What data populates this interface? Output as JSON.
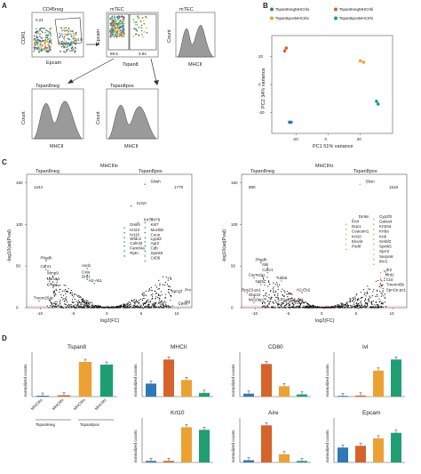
{
  "panels": {
    "A": "A",
    "B": "B",
    "C": "C",
    "D": "D"
  },
  "panel_a": {
    "plot1": {
      "title": "CD45neg",
      "xlabel": "Epcam",
      "ylabel": "CDR1",
      "gate_top": "0.21",
      "gate_right": "34.9"
    },
    "plot2": {
      "title": "mTEC",
      "xlabel": "Tspan8",
      "ylabel": "Epcam",
      "gate_left": "89.5",
      "gate_right": "3.94"
    },
    "plot3": {
      "title": "mTEC",
      "xlabel": "MHCII",
      "ylabel": "Count",
      "left_val": "55.6",
      "right_val": "44.4"
    },
    "plot4": {
      "title": "Tspan8neg",
      "xlabel": "MHCII",
      "ylabel": "Count",
      "left_val": "56.3",
      "right_val": "44.7"
    },
    "plot5": {
      "title": "Tspan8pos",
      "xlabel": "MHCII",
      "ylabel": "Count",
      "left_val": "56.1",
      "right_val": "43.7"
    }
  },
  "colors": {
    "blue": "#2e78b7",
    "red": "#d5632a",
    "orange": "#eba232",
    "green": "#1f9e74",
    "teal": "#2aa38a"
  },
  "chart_data": [
    {
      "type": "scatter",
      "title": "",
      "xlabel": "PC1 51% variance",
      "ylabel": "PC2 34% variance",
      "legend": [
        "Tspan8negMHCIIlo",
        "Tspan8negMHCIIhi",
        "Tspan8posMHCIIlo",
        "Tspan8posMHCIIhi"
      ],
      "xticks": [
        "-20",
        "0",
        "20"
      ],
      "yticks": [
        "20",
        "0",
        "-20"
      ],
      "series": [
        {
          "name": "Tspan8negMHCIIlo",
          "color": "#2e78b7",
          "x": [
            -24,
            -23
          ],
          "y": [
            -27,
            -27
          ]
        },
        {
          "name": "Tspan8negMHCIIhi",
          "color": "#d5632a",
          "x": [
            -27,
            -26
          ],
          "y": [
            24,
            26
          ]
        },
        {
          "name": "Tspan8posMHCIIlo",
          "color": "#eba232",
          "x": [
            20,
            22
          ],
          "y": [
            17,
            16
          ]
        },
        {
          "name": "Tspan8posMHCIIhi",
          "color": "#1f9e74",
          "x": [
            30,
            31
          ],
          "y": [
            -12,
            -14
          ]
        }
      ]
    },
    {
      "type": "scatter",
      "title": "MHCIIlo",
      "left_group": "Tspan8neg",
      "right_group": "Tspan8pos",
      "xlabel": "log2(FC)",
      "ylabel": "-log10(adjPval)",
      "xticks": [
        "-10",
        "-5",
        "0",
        "5",
        "10"
      ],
      "yticks": [
        "0",
        "50",
        "100",
        "150"
      ],
      "count_left": "1244",
      "count_right": "1779",
      "labels_right": [
        {
          "text": "S8wh",
          "x": 6,
          "y": 150
        },
        {
          "text": "Krt10",
          "x": 4,
          "y": 124
        },
        {
          "text": "Krt77",
          "x": 5,
          "y": 104
        },
        {
          "text": "Krt79",
          "x": 6,
          "y": 104
        },
        {
          "text": "Dmkn",
          "x": 3,
          "y": 98
        },
        {
          "text": "Ki67",
          "x": 6,
          "y": 98
        },
        {
          "text": "Krt23",
          "x": 3,
          "y": 92
        },
        {
          "text": "Mucl5b",
          "x": 6,
          "y": 92
        },
        {
          "text": "Krt10",
          "x": 3,
          "y": 86
        },
        {
          "text": "Coun",
          "x": 6,
          "y": 86
        },
        {
          "text": "Wfdc2",
          "x": 3,
          "y": 81
        },
        {
          "text": "Lypd3",
          "x": 6,
          "y": 81
        },
        {
          "text": "Calml3",
          "x": 3,
          "y": 76
        },
        {
          "text": "Agr2",
          "x": 6,
          "y": 76
        },
        {
          "text": "Fam84a",
          "x": 3,
          "y": 70
        },
        {
          "text": "Cdb",
          "x": 6,
          "y": 70
        },
        {
          "text": "Rptn",
          "x": 3,
          "y": 64
        },
        {
          "text": "Spink5",
          "x": 6,
          "y": 64
        },
        {
          "text": "Cd36",
          "x": 6,
          "y": 58
        },
        {
          "text": "Sprr2f",
          "x": 9,
          "y": 18
        },
        {
          "text": "Pm",
          "x": 11,
          "y": 20
        },
        {
          "text": "Aqp7",
          "x": 7,
          "y": 4
        },
        {
          "text": "Cpa6",
          "x": 10,
          "y": 4
        },
        {
          "text": "Hg",
          "x": 11,
          "y": 6
        }
      ],
      "labels_left": [
        {
          "text": "Phgdh",
          "x": -10,
          "y": 58
        },
        {
          "text": "Cdhr1",
          "x": -10,
          "y": 48
        },
        {
          "text": "Mmp9",
          "x": -9,
          "y": 40
        },
        {
          "text": "Lama4",
          "x": -9,
          "y": 33
        },
        {
          "text": "Chga",
          "x": -9,
          "y": 26
        },
        {
          "text": "Asd1",
          "x": -4,
          "y": 49
        },
        {
          "text": "Cxla",
          "x": -4,
          "y": 41
        },
        {
          "text": "Drd1",
          "x": -4,
          "y": 36
        },
        {
          "text": "H2-Ab1",
          "x": -3,
          "y": 31
        },
        {
          "text": "Tmem254c",
          "x": -11,
          "y": 10
        }
      ]
    },
    {
      "type": "scatter",
      "title": "MHCIIhi",
      "left_group": "Tspan8neg",
      "right_group": "Tspan8pos",
      "xlabel": "log2(FC)",
      "ylabel": "-log10(adjPval)",
      "xticks": [
        "-10",
        "-5",
        "0",
        "5",
        "10"
      ],
      "yticks": [
        "0",
        "50",
        "100",
        "150"
      ],
      "count_left": "880",
      "count_right": "1519",
      "labels_right": [
        {
          "text": "Sbsn",
          "x": 6,
          "y": 150
        },
        {
          "text": "Dmkn",
          "x": 5,
          "y": 108
        },
        {
          "text": "Cyp2f2",
          "x": 8,
          "y": 108
        },
        {
          "text": "Krt4",
          "x": 4,
          "y": 102
        },
        {
          "text": "Gaixa4",
          "x": 8,
          "y": 102
        },
        {
          "text": "Dqx1",
          "x": 4,
          "y": 96
        },
        {
          "text": "Krt34a",
          "x": 8,
          "y": 96
        },
        {
          "text": "Ceacam1",
          "x": 4,
          "y": 90
        },
        {
          "text": "Krt6a",
          "x": 8,
          "y": 90
        },
        {
          "text": "Krt10",
          "x": 4,
          "y": 84
        },
        {
          "text": "Krt6",
          "x": 8,
          "y": 84
        },
        {
          "text": "Elovl4",
          "x": 4,
          "y": 78
        },
        {
          "text": "Srebf2",
          "x": 8,
          "y": 78
        },
        {
          "text": "Psdrl",
          "x": 4,
          "y": 72
        },
        {
          "text": "Spink5",
          "x": 8,
          "y": 72
        },
        {
          "text": "Sprr3",
          "x": 8,
          "y": 66
        },
        {
          "text": "Serpin8",
          "x": 8,
          "y": 60
        },
        {
          "text": "Ifrn3",
          "x": 8,
          "y": 54
        },
        {
          "text": "Ifr2",
          "x": 9,
          "y": 44
        },
        {
          "text": "Ifrd1",
          "x": 9,
          "y": 38
        },
        {
          "text": "Ctxl",
          "x": 9,
          "y": 32
        },
        {
          "text": "Tmem45b",
          "x": 9,
          "y": 26
        },
        {
          "text": "Sprr2e-ps1",
          "x": 9,
          "y": 20
        }
      ],
      "labels_left": [
        {
          "text": "Phgdh",
          "x": -10,
          "y": 56
        },
        {
          "text": "Ibkl",
          "x": -9,
          "y": 50
        },
        {
          "text": "Cdhr1",
          "x": -9,
          "y": 44
        },
        {
          "text": "Cacna1g",
          "x": -11,
          "y": 38
        },
        {
          "text": "Tubb5",
          "x": -7,
          "y": 34
        },
        {
          "text": "Npt5",
          "x": -10,
          "y": 30
        },
        {
          "text": "Rps23-ps1",
          "x": -12,
          "y": 20
        },
        {
          "text": "Gbp10",
          "x": -11,
          "y": 14
        },
        {
          "text": "Ms16bp",
          "x": -11,
          "y": 8
        },
        {
          "text": "Defb22-ps1",
          "x": -6,
          "y": 8
        },
        {
          "text": "H2-Eb2",
          "x": -4,
          "y": 20
        }
      ]
    },
    {
      "type": "bar",
      "title": "Tspan8",
      "ylabel": "normalized counts",
      "categories": [
        "MHCIIlo",
        "MHCIIhi",
        "MHCIIlo",
        "MHCIIhi"
      ],
      "group_labels": [
        "Tspan8neg",
        "Tspan8pos"
      ],
      "values": [
        2,
        3,
        78,
        72
      ],
      "ylim": [
        0,
        100
      ]
    },
    {
      "type": "bar",
      "title": "MHCII",
      "ylabel": "normalized counts",
      "values": [
        35,
        100,
        45,
        10
      ],
      "ylim": [
        0,
        120
      ]
    },
    {
      "type": "bar",
      "title": "CD80",
      "ylabel": "normalized counts",
      "values": [
        8,
        88,
        28,
        6
      ],
      "ylim": [
        0,
        120
      ]
    },
    {
      "type": "bar",
      "title": "Ivl",
      "ylabel": "normalized counts",
      "values": [
        2,
        3,
        70,
        100
      ],
      "ylim": [
        0,
        120
      ]
    },
    {
      "type": "bar",
      "title": "Krt10",
      "ylabel": "normalized counts",
      "values": [
        4,
        4,
        95,
        88
      ],
      "ylim": [
        0,
        120
      ]
    },
    {
      "type": "bar",
      "title": "Aire",
      "ylabel": "normalized counts",
      "values": [
        6,
        100,
        22,
        4
      ],
      "ylim": [
        0,
        120
      ]
    },
    {
      "type": "bar",
      "title": "Epcam",
      "ylabel": "normalized counts",
      "values": [
        40,
        45,
        65,
        80
      ],
      "ylim": [
        0,
        120
      ]
    }
  ]
}
